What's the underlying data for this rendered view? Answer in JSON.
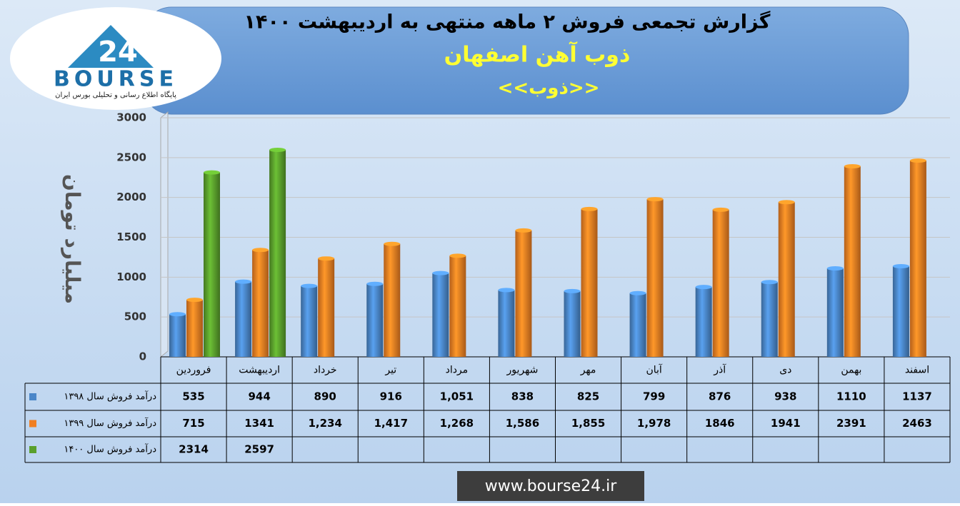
{
  "logo": {
    "brand": "BOURSE",
    "number": "24",
    "tagline": "پایگاه اطلاع رسانی و تحلیلی بورس ایران"
  },
  "footer": "www.bourse24.ir",
  "chart_data": {
    "type": "bar",
    "title": "گزارش تجمعی فروش ۲ ماهه منتهی به اردیبهشت ۱۴۰۰",
    "subtitle": "ذوب آهن اصفهان",
    "symbol": "<<ذوب>>",
    "y_label": "میلیارد تومان",
    "categories": [
      "فروردین",
      "اردیبهشت",
      "خرداد",
      "تیر",
      "مرداد",
      "شهریور",
      "مهر",
      "آبان",
      "آذر",
      "دی",
      "بهمن",
      "اسفند"
    ],
    "series": [
      {
        "name": "درآمد فروش سال ۱۳۹۸",
        "color": "#4a86c8",
        "values": [
          535,
          944,
          890,
          916,
          1051,
          838,
          825,
          799,
          876,
          938,
          1110,
          1137
        ],
        "value_labels": [
          "535",
          "944",
          "890",
          "916",
          "1,051",
          "838",
          "825",
          "799",
          "876",
          "938",
          "1110",
          "1137"
        ]
      },
      {
        "name": "درآمد فروش سال ۱۳۹۹",
        "color": "#f07f22",
        "values": [
          715,
          1341,
          1234,
          1417,
          1268,
          1586,
          1855,
          1978,
          1846,
          1941,
          2391,
          2463
        ],
        "value_labels": [
          "715",
          "1341",
          "1,234",
          "1,417",
          "1,268",
          "1,586",
          "1,855",
          "1,978",
          "1846",
          "1941",
          "2391",
          "2463"
        ]
      },
      {
        "name": "درآمد فروش سال ۱۴۰۰",
        "color": "#5aa02c",
        "values": [
          2314,
          2597,
          null,
          null,
          null,
          null,
          null,
          null,
          null,
          null,
          null,
          null
        ]
      }
    ],
    "ylim": [
      0,
      3000
    ],
    "yticks": [
      0,
      500,
      1000,
      1500,
      2000,
      2500,
      3000
    ],
    "grid": true
  }
}
